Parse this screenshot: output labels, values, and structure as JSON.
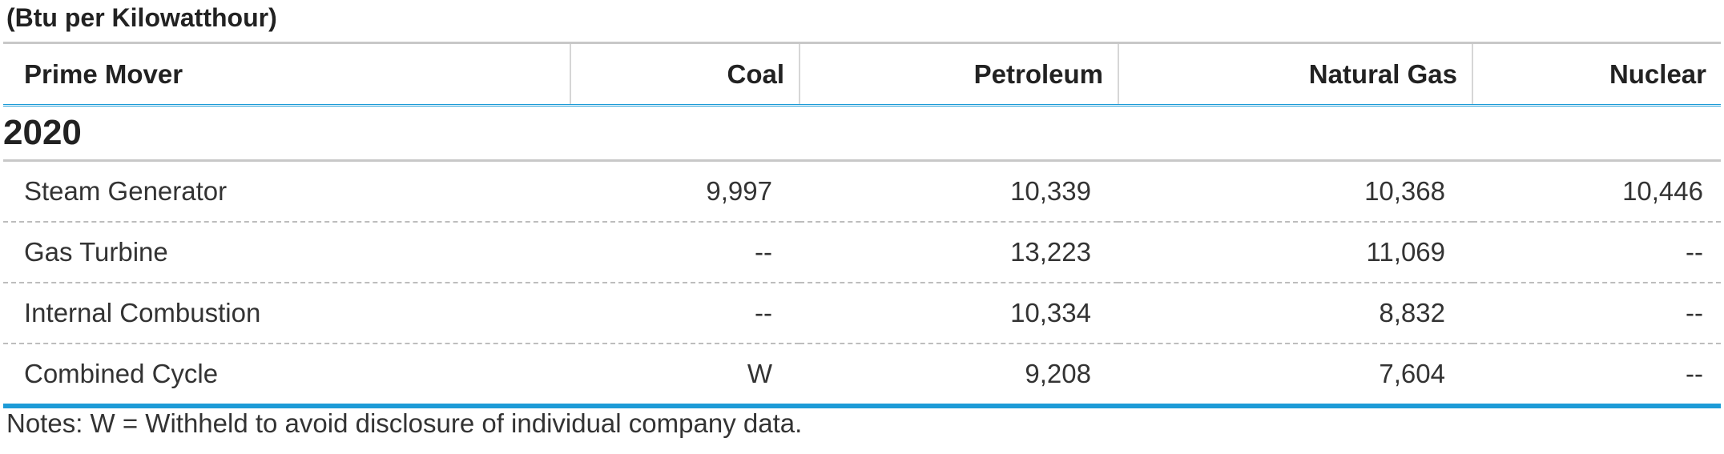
{
  "units_label": "(Btu per Kilowatthour)",
  "table": {
    "columns": [
      "Prime Mover",
      "Coal",
      "Petroleum",
      "Natural Gas",
      "Nuclear"
    ],
    "year": "2020",
    "rows": [
      {
        "label": "Steam Generator",
        "coal": "9,997",
        "petroleum": "10,339",
        "natural_gas": "10,368",
        "nuclear": "10,446"
      },
      {
        "label": "Gas Turbine",
        "coal": "--",
        "petroleum": "13,223",
        "natural_gas": "11,069",
        "nuclear": "--"
      },
      {
        "label": "Internal Combustion",
        "coal": "--",
        "petroleum": "10,334",
        "natural_gas": "8,832",
        "nuclear": "--"
      },
      {
        "label": "Combined Cycle",
        "coal": "W",
        "petroleum": "9,208",
        "natural_gas": "7,604",
        "nuclear": "--"
      }
    ]
  },
  "notes": "Notes: W = Withheld to avoid disclosure of individual company data.",
  "colors": {
    "accent": "#1d9bd7",
    "rule": "#c8c8c8",
    "dashed_divider": "#bdbdbd"
  }
}
